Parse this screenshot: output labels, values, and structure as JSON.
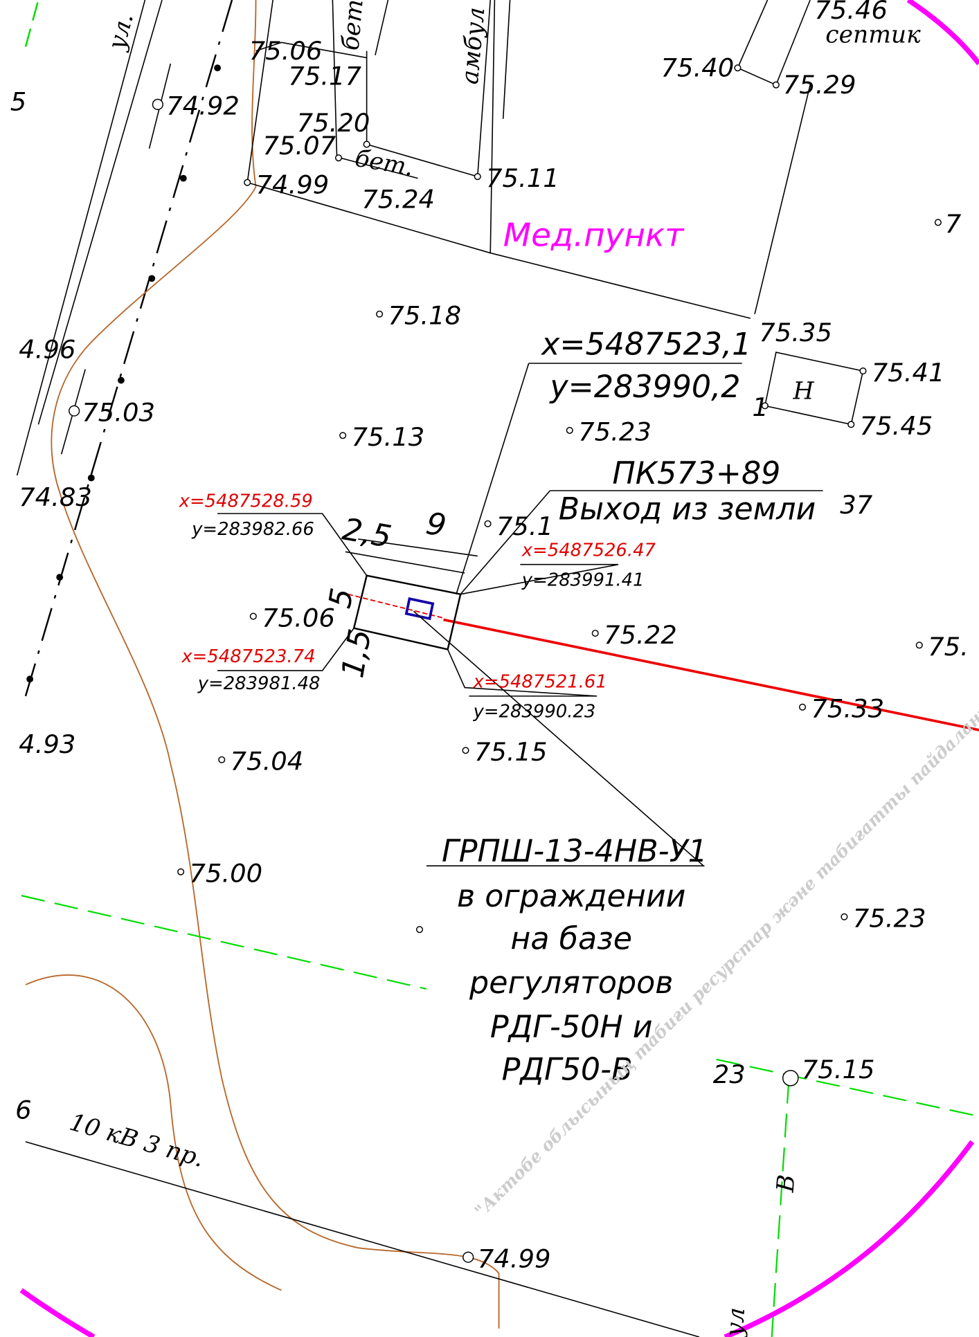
{
  "elevations": [
    "75.06",
    "75.17",
    "74.92",
    "75.20",
    "75.07",
    "74.99",
    "75.24",
    "75.11",
    "75.40",
    "75.29",
    "75.46",
    "75.18",
    "75.35",
    "75.41",
    "75.45",
    "75.13",
    "75.23",
    "75.03",
    "4.96",
    "74.83",
    "75.1",
    "75.06",
    "75.22",
    "75.33",
    "4.93",
    "75.04",
    "75.15",
    "75.00",
    "75.23",
    "75.15",
    "74.99",
    "75.",
    "7",
    "1",
    "37",
    "23",
    "6",
    "5"
  ],
  "street_labels": [
    "ул.",
    "ул"
  ],
  "object_labels": [
    "бет.",
    "амбул",
    "септик",
    "бет.",
    "Мед.пункт",
    "Н",
    "В",
    "10 кВ 3 пр."
  ],
  "point_coordinates": {
    "x": "x=5487523,1",
    "y": "y=283990,2"
  },
  "picket": {
    "label": "ПК573+89",
    "note": "Выход из земли"
  },
  "corners": [
    {
      "x": "x=5487528.59",
      "y": "y=283982.66"
    },
    {
      "x": "x=5487526.47",
      "y": "y=283991.41"
    },
    {
      "x": "x=5487523.74",
      "y": "y=283981.48"
    },
    {
      "x": "x=5487521.61",
      "y": "y=283990.23"
    }
  ],
  "dimensions": [
    "2,5",
    "9",
    "5",
    "1,5"
  ],
  "equipment": {
    "title": "ГРПШ-13-4НВ-У1",
    "lines": [
      "в ограждении",
      "на базе",
      "регуляторов",
      "РДГ-50Н и",
      "РДГ50-В"
    ]
  },
  "watermark": "\"Актобе облысының табиғи ресурстар және табиғатты пайдалануды ре"
}
